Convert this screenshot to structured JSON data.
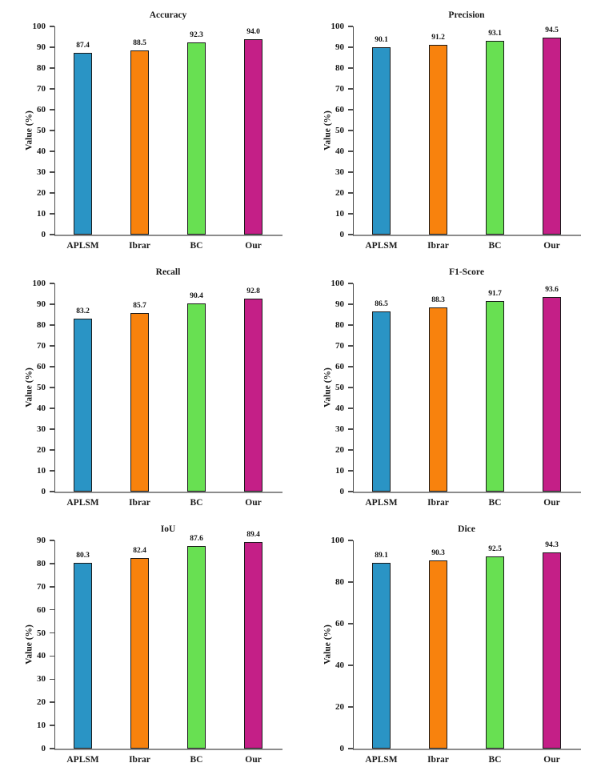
{
  "figure": {
    "background": "#ffffff",
    "grid": "3 rows x 2 cols"
  },
  "bar_colors": [
    "#2A94C5",
    "#F8820D",
    "#68E052",
    "#C41F87"
  ],
  "bar_edge_color": "#1a1a1a",
  "axis_color": "#4d4d4d",
  "chart_data": [
    {
      "type": "bar",
      "title": "Accuracy",
      "categories": [
        "APLSM",
        "Ibrar",
        "BC",
        "Our"
      ],
      "values": [
        87.4,
        88.5,
        92.3,
        94.0
      ],
      "value_labels": [
        "87.4",
        "88.5",
        "92.3",
        "94.0"
      ],
      "xlabel": "",
      "ylabel": "Value (%)",
      "ylim": [
        0,
        100
      ],
      "yticks": [
        0,
        10,
        20,
        30,
        40,
        50,
        60,
        70,
        80,
        90,
        100
      ],
      "grid": "off",
      "legend": "none"
    },
    {
      "type": "bar",
      "title": "Precision",
      "categories": [
        "APLSM",
        "Ibrar",
        "BC",
        "Our"
      ],
      "values": [
        90.1,
        91.2,
        93.1,
        94.5
      ],
      "value_labels": [
        "90.1",
        "91.2",
        "93.1",
        "94.5"
      ],
      "xlabel": "",
      "ylabel": "Value (%)",
      "ylim": [
        0,
        100
      ],
      "yticks": [
        0,
        10,
        20,
        30,
        40,
        50,
        60,
        70,
        80,
        90,
        100
      ],
      "grid": "off",
      "legend": "none"
    },
    {
      "type": "bar",
      "title": "Recall",
      "categories": [
        "APLSM",
        "Ibrar",
        "BC",
        "Our"
      ],
      "values": [
        83.2,
        85.7,
        90.4,
        92.8
      ],
      "value_labels": [
        "83.2",
        "85.7",
        "90.4",
        "92.8"
      ],
      "xlabel": "",
      "ylabel": "Value (%)",
      "ylim": [
        0,
        100
      ],
      "yticks": [
        0,
        10,
        20,
        30,
        40,
        50,
        60,
        70,
        80,
        90,
        100
      ],
      "grid": "off",
      "legend": "none"
    },
    {
      "type": "bar",
      "title": "F1-Score",
      "categories": [
        "APLSM",
        "Ibrar",
        "BC",
        "Our"
      ],
      "values": [
        86.5,
        88.3,
        91.7,
        93.6
      ],
      "value_labels": [
        "86.5",
        "88.3",
        "91.7",
        "93.6"
      ],
      "xlabel": "",
      "ylabel": "Value (%)",
      "ylim": [
        0,
        100
      ],
      "yticks": [
        0,
        10,
        20,
        30,
        40,
        50,
        60,
        70,
        80,
        90,
        100
      ],
      "grid": "off",
      "legend": "none"
    },
    {
      "type": "bar",
      "title": "IoU",
      "categories": [
        "APLSM",
        "Ibrar",
        "BC",
        "Our"
      ],
      "values": [
        80.3,
        82.4,
        87.6,
        89.4
      ],
      "value_labels": [
        "80.3",
        "82.4",
        "87.6",
        "89.4"
      ],
      "xlabel": "",
      "ylabel": "Value (%)",
      "ylim": [
        0,
        90
      ],
      "yticks": [
        0,
        10,
        20,
        30,
        40,
        50,
        60,
        70,
        80,
        90
      ],
      "grid": "off",
      "legend": "none"
    },
    {
      "type": "bar",
      "title": "Dice",
      "categories": [
        "APLSM",
        "Ibrar",
        "BC",
        "Our"
      ],
      "values": [
        89.1,
        90.3,
        92.5,
        94.3
      ],
      "value_labels": [
        "89.1",
        "90.3",
        "92.5",
        "94.3"
      ],
      "xlabel": "",
      "ylabel": "Value (%)",
      "ylim": [
        0,
        100
      ],
      "yticks": [
        0,
        20,
        40,
        60,
        80,
        100
      ],
      "grid": "off",
      "legend": "none"
    }
  ]
}
